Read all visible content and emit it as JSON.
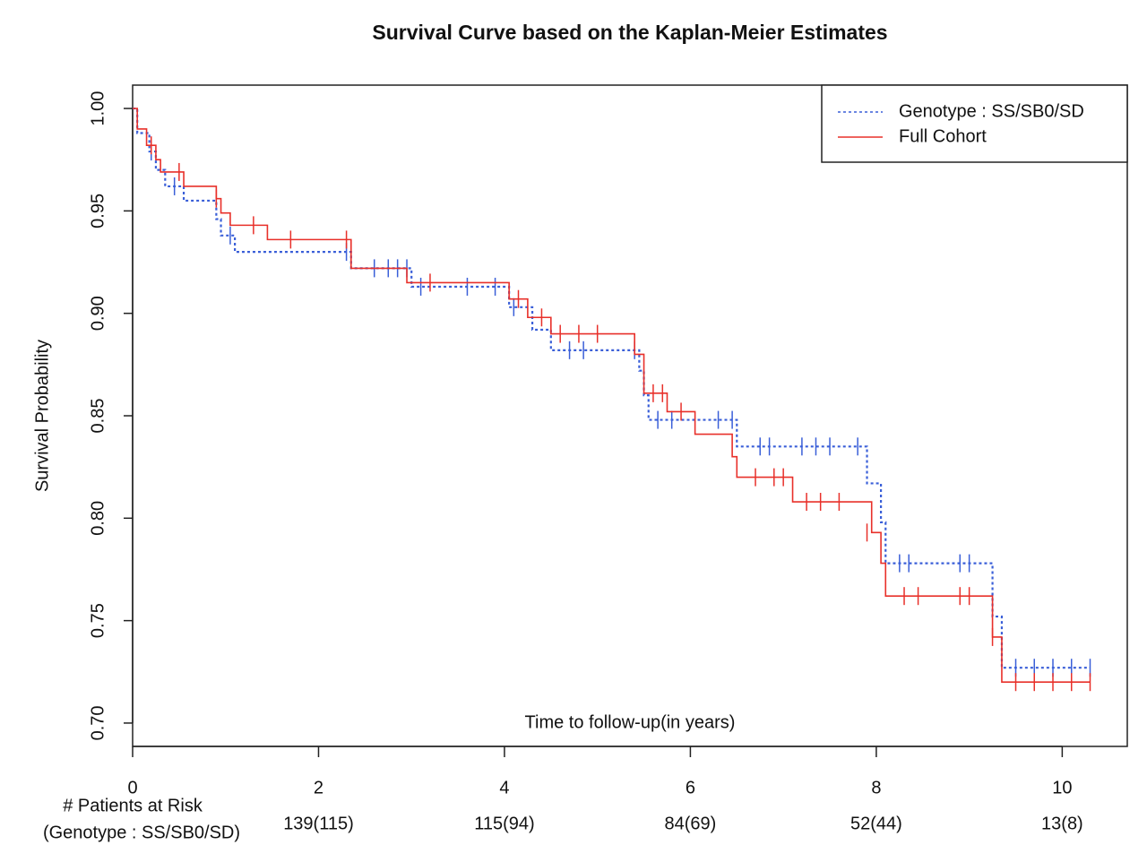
{
  "chart_data": {
    "type": "step",
    "title": "Survival Curve based on the Kaplan-Meier Estimates",
    "x_label": "Time to follow-up(in years)",
    "y_label": "Survival Probability",
    "xlim": [
      0,
      10.7
    ],
    "ylim": [
      0.6886,
      1.0114
    ],
    "xticks": [
      0,
      2,
      4,
      6,
      8,
      10
    ],
    "yticks": [
      {
        "value": 0.7,
        "label": "0.70"
      },
      {
        "value": 0.75,
        "label": "0.75"
      },
      {
        "value": 0.8,
        "label": "0.80"
      },
      {
        "value": 0.85,
        "label": "0.85"
      },
      {
        "value": 0.9,
        "label": "0.90"
      },
      {
        "value": 0.95,
        "label": "0.95"
      },
      {
        "value": 1.0,
        "label": "1.00"
      }
    ],
    "legend": "top-right",
    "series": [
      {
        "name": "Genotype : SS/SB0/SD",
        "color": "#3a5fd8",
        "dash": "3,3",
        "x": [
          0,
          0.05,
          0.18,
          0.25,
          0.35,
          0.55,
          0.9,
          0.95,
          1.1,
          2.35,
          3.0,
          4.05,
          4.3,
          4.5,
          5.45,
          5.5,
          5.55,
          6.5,
          7.9,
          8.05,
          8.1,
          9.25,
          9.35
        ],
        "values": [
          1.0,
          0.988,
          0.979,
          0.97,
          0.962,
          0.955,
          0.946,
          0.938,
          0.93,
          0.922,
          0.913,
          0.903,
          0.892,
          0.882,
          0.872,
          0.86,
          0.848,
          0.835,
          0.817,
          0.798,
          0.778,
          0.752,
          0.727
        ],
        "censored": {
          "x": [
            0.2,
            0.45,
            1.05,
            2.3,
            2.6,
            2.75,
            2.85,
            2.95,
            3.1,
            3.6,
            3.9,
            4.1,
            4.7,
            4.85,
            5.4,
            5.65,
            5.8,
            6.3,
            6.45,
            6.75,
            6.85,
            7.2,
            7.35,
            7.5,
            7.8,
            8.25,
            8.35,
            8.9,
            9.0,
            9.5,
            9.7,
            9.9,
            10.1,
            10.3
          ],
          "values": [
            0.979,
            0.962,
            0.938,
            0.93,
            0.922,
            0.922,
            0.922,
            0.922,
            0.913,
            0.913,
            0.913,
            0.903,
            0.882,
            0.882,
            0.882,
            0.848,
            0.848,
            0.848,
            0.848,
            0.835,
            0.835,
            0.835,
            0.835,
            0.835,
            0.835,
            0.778,
            0.778,
            0.778,
            0.778,
            0.727,
            0.727,
            0.727,
            0.727,
            0.727
          ]
        }
      },
      {
        "name": "Full Cohort",
        "color": "#e8302a",
        "dash": "",
        "x": [
          0,
          0.05,
          0.15,
          0.25,
          0.3,
          0.55,
          0.9,
          0.95,
          1.05,
          1.45,
          2.35,
          2.95,
          4.05,
          4.25,
          4.5,
          5.4,
          5.5,
          5.75,
          6.05,
          6.45,
          6.5,
          7.1,
          7.95,
          8.05,
          8.1,
          9.25,
          9.35
        ],
        "values": [
          1.0,
          0.99,
          0.982,
          0.975,
          0.969,
          0.962,
          0.956,
          0.949,
          0.943,
          0.936,
          0.922,
          0.915,
          0.907,
          0.898,
          0.89,
          0.88,
          0.861,
          0.852,
          0.841,
          0.83,
          0.82,
          0.808,
          0.793,
          0.778,
          0.762,
          0.742,
          0.72
        ],
        "censored": {
          "x": [
            0.2,
            0.5,
            0.9,
            1.3,
            1.7,
            2.3,
            3.2,
            4.15,
            4.4,
            4.6,
            4.8,
            5.0,
            5.6,
            5.7,
            5.9,
            6.7,
            6.9,
            7.0,
            7.25,
            7.4,
            7.6,
            7.9,
            8.3,
            8.45,
            8.9,
            9.0,
            9.25,
            9.5,
            9.7,
            9.9,
            10.1,
            10.3
          ],
          "values": [
            0.982,
            0.969,
            0.956,
            0.943,
            0.936,
            0.936,
            0.915,
            0.907,
            0.898,
            0.89,
            0.89,
            0.89,
            0.861,
            0.861,
            0.852,
            0.82,
            0.82,
            0.82,
            0.808,
            0.808,
            0.808,
            0.793,
            0.762,
            0.762,
            0.762,
            0.762,
            0.742,
            0.72,
            0.72,
            0.72,
            0.72,
            0.72
          ]
        }
      }
    ],
    "risk_table": {
      "title": "# Patients at Risk",
      "subtitle": "(Genotype : SS/SB0/SD)",
      "counts": [
        null,
        "139(115)",
        "115(94)",
        "84(69)",
        "52(44)",
        "13(8)"
      ]
    }
  }
}
